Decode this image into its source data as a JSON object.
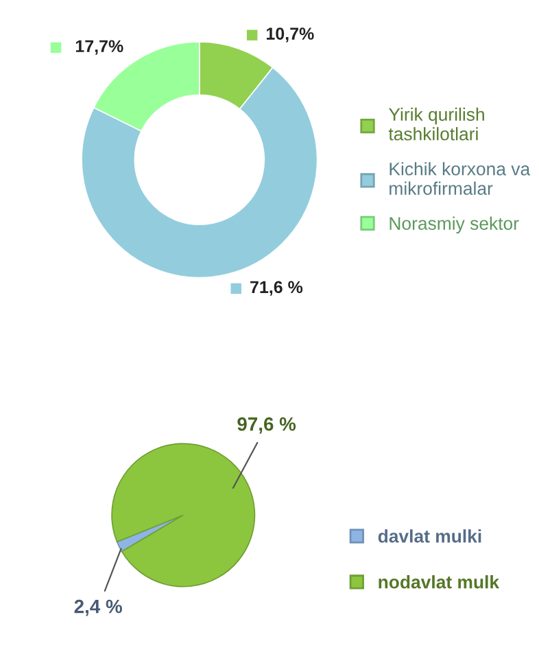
{
  "chart_data": [
    {
      "type": "donut",
      "categories": [
        "Yirik qurilish tashkilotlari",
        "Kichik korxona va mikrofirmalar",
        "Norasmiy sektor"
      ],
      "values": [
        10.7,
        71.6,
        17.7
      ],
      "colors": [
        "#92d050",
        "#93cddd",
        "#99ff99"
      ],
      "value_labels": [
        "10,7%",
        "71,6 %",
        "17,7%"
      ],
      "legend": "right"
    },
    {
      "type": "pie",
      "categories": [
        "davlat mulki",
        "nodavlat mulk"
      ],
      "values": [
        2.4,
        97.6
      ],
      "colors": [
        "#8eb4e3",
        "#8cc63f"
      ],
      "value_labels": [
        "2,4 %",
        "97,6 %"
      ],
      "legend": "bottom right"
    }
  ]
}
